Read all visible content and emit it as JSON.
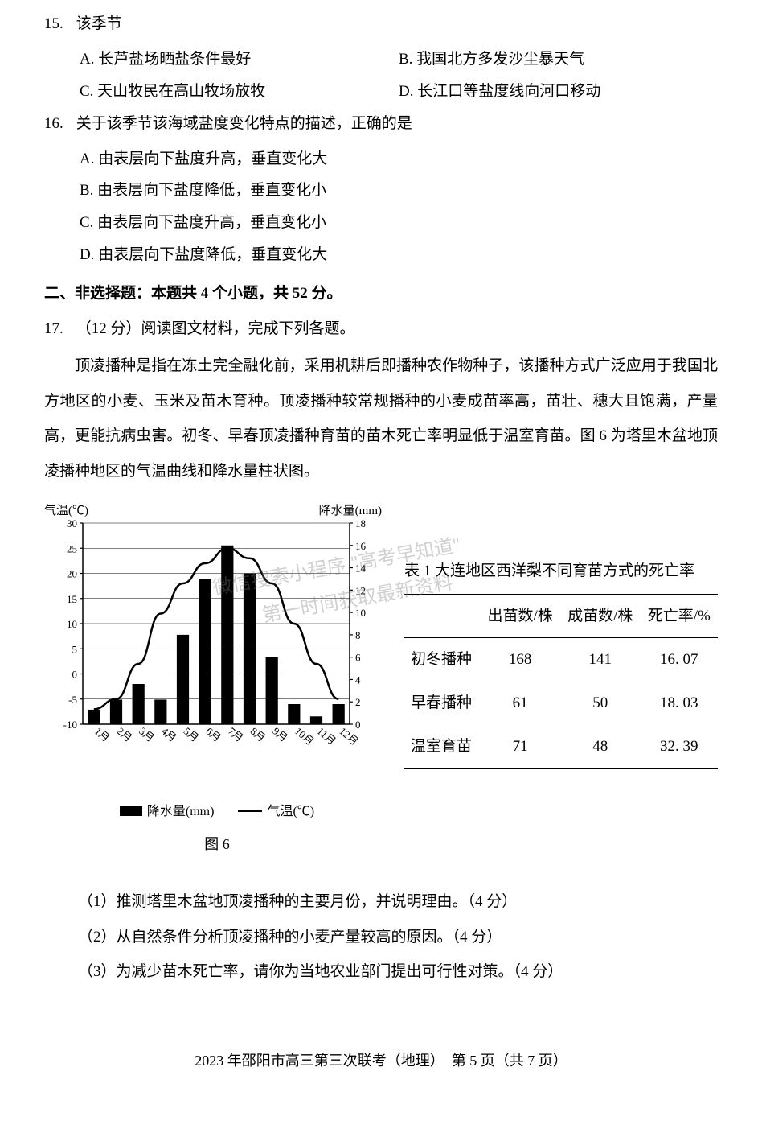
{
  "q15": {
    "num": "15.",
    "stem": "该季节",
    "opts": {
      "A": "A.  长芦盐场晒盐条件最好",
      "B": "B.  我国北方多发沙尘暴天气",
      "C": "C.  天山牧民在高山牧场放牧",
      "D": "D.  长江口等盐度线向河口移动"
    }
  },
  "q16": {
    "num": "16.",
    "stem": "关于该季节该海域盐度变化特点的描述，正确的是",
    "opts": {
      "A": "A.  由表层向下盐度升高，垂直变化大",
      "B": "B.  由表层向下盐度降低，垂直变化小",
      "C": "C.  由表层向下盐度升高，垂直变化小",
      "D": "D.  由表层向下盐度降低，垂直变化大"
    }
  },
  "section2_header": "二、非选择题：本题共 4 个小题，共 52 分。",
  "q17": {
    "num": "17.",
    "stem": "（12 分）阅读图文材料，完成下列各题。",
    "para": "顶凌播种是指在冻土完全融化前，采用机耕后即播种农作物种子，该播种方式广泛应用于我国北方地区的小麦、玉米及苗木育种。顶凌播种较常规播种的小麦成苗率高，苗壮、穗大且饱满，产量高，更能抗病虫害。初冬、早春顶凌播种育苗的苗木死亡率明显低于温室育苗。图 6 为塔里木盆地顶凌播种地区的气温曲线和降水量柱状图。"
  },
  "chart": {
    "left_axis_label": "气温(℃)",
    "right_axis_label": "降水量(mm)",
    "left_ticks": [
      -10,
      -5,
      0,
      5,
      10,
      15,
      20,
      25,
      30
    ],
    "right_ticks": [
      0,
      2,
      4,
      6,
      8,
      10,
      12,
      14,
      16,
      18
    ],
    "months": [
      "1月",
      "2月",
      "3月",
      "4月",
      "5月",
      "6月",
      "7月",
      "8月",
      "9月",
      "10月",
      "11月",
      "12月"
    ],
    "precipitation": [
      1.3,
      2.2,
      3.6,
      2.2,
      8.0,
      13.0,
      16.0,
      13.5,
      6.0,
      1.8,
      0.7,
      1.8
    ],
    "temperature": [
      -7,
      -5,
      2,
      12,
      18,
      22,
      25,
      23,
      18,
      10,
      2,
      -5
    ],
    "legend": {
      "precip": "降水量(mm)",
      "temp": "气温(℃)"
    },
    "caption": "图 6",
    "bar_color": "#000000",
    "line_color": "#000000",
    "grid_color": "#000000",
    "bg": "#ffffff"
  },
  "table": {
    "title": "表 1  大连地区西洋梨不同育苗方式的死亡率",
    "headers": [
      "",
      "出苗数/株",
      "成苗数/株",
      "死亡率/%"
    ],
    "rows": [
      [
        "初冬播种",
        "168",
        "141",
        "16.  07"
      ],
      [
        "早春播种",
        "61",
        "50",
        "18.  03"
      ],
      [
        "温室育苗",
        "71",
        "48",
        "32.  39"
      ]
    ]
  },
  "watermarks": {
    "w2": "微信搜索小程序  \"高考早知道\"",
    "w3": "第一时间获取最新资料"
  },
  "sub_questions": {
    "s1": "（1）推测塔里木盆地顶凌播种的主要月份，并说明理由。（4 分）",
    "s2": "（2）从自然条件分析顶凌播种的小麦产量较高的原因。（4 分）",
    "s3": "（3）为减少苗木死亡率，请你为当地农业部门提出可行性对策。（4 分）"
  },
  "footer": "2023 年邵阳市高三第三次联考（地理）　第 5 页（共 7 页）"
}
